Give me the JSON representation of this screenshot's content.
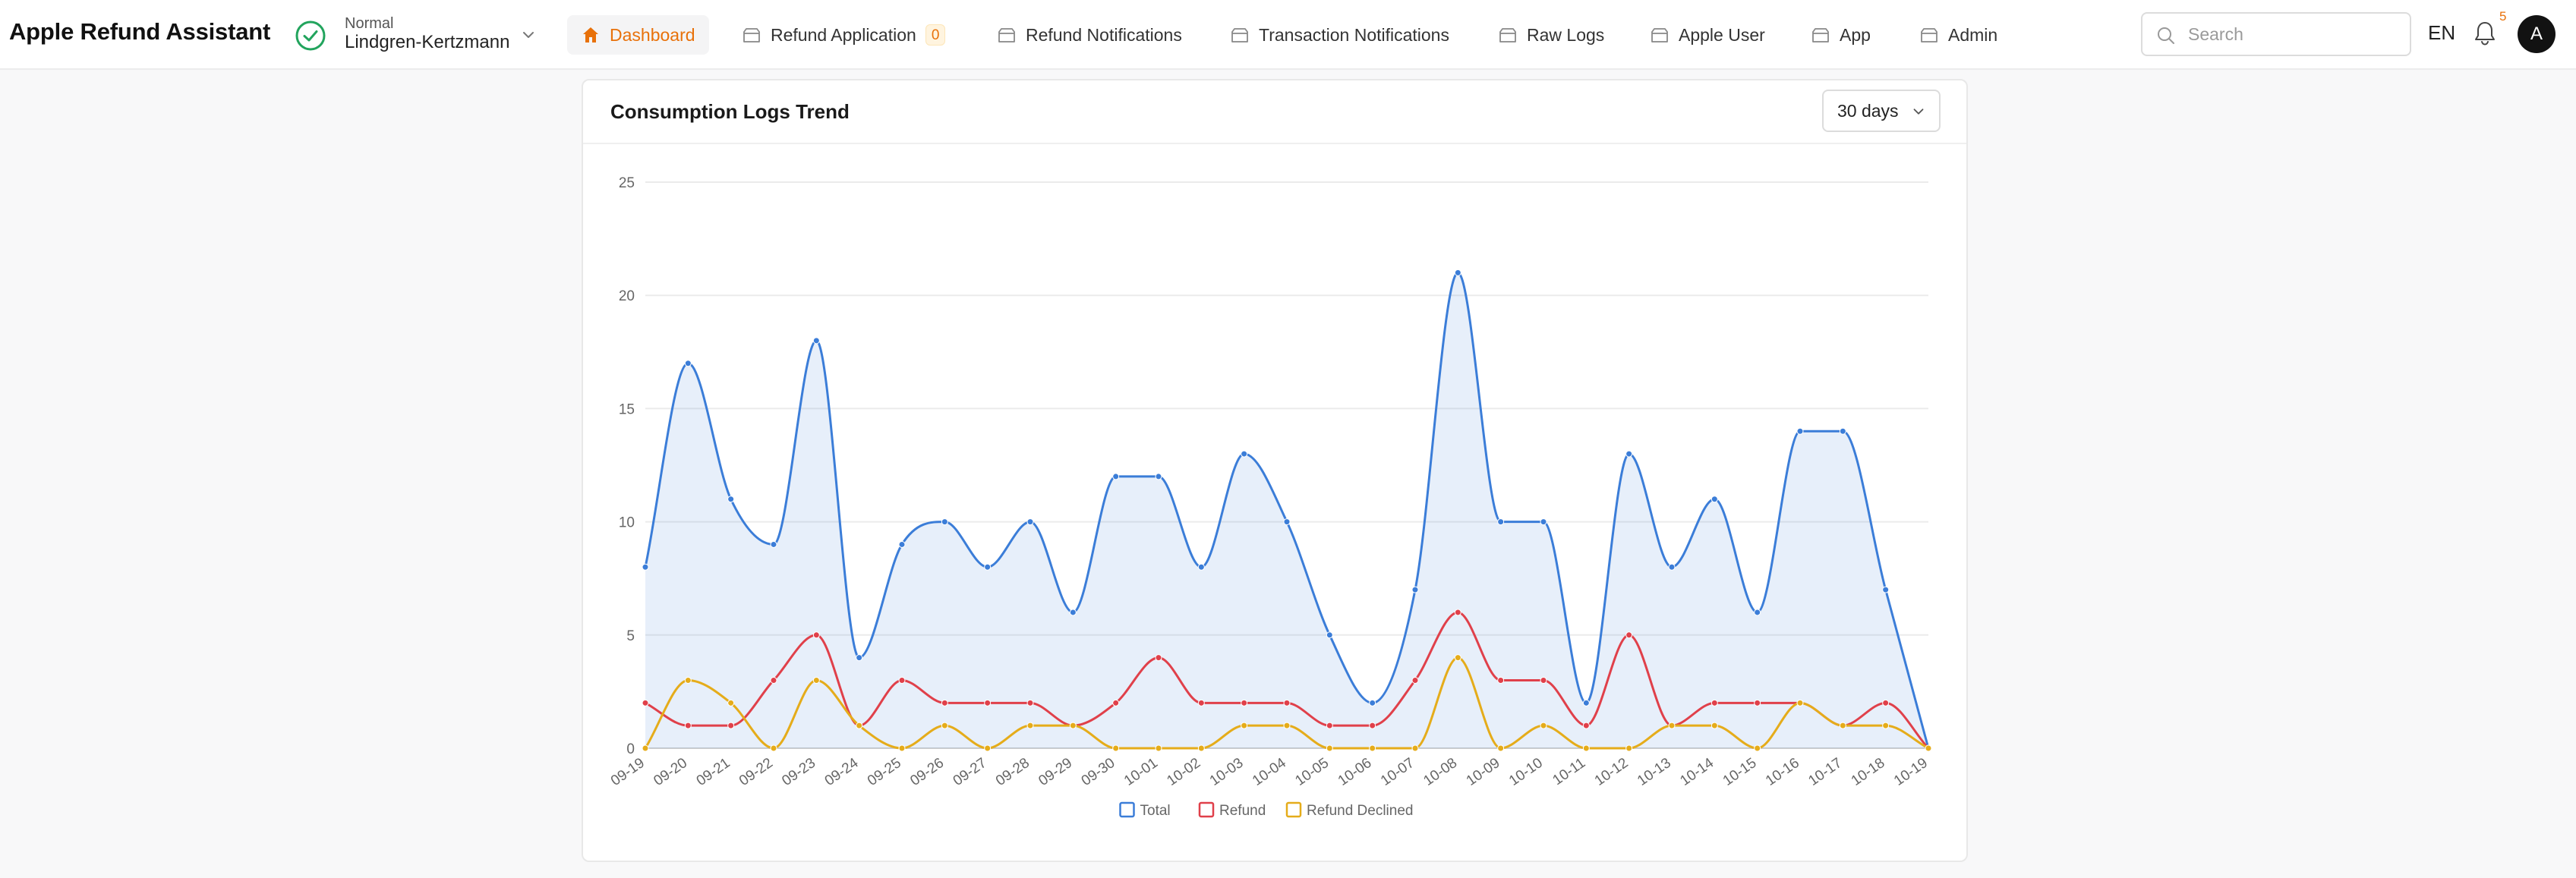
{
  "brand": "Apple Refund Assistant",
  "tenant": {
    "status": "Normal",
    "name": "Lindgren-Kertzmann"
  },
  "nav": [
    {
      "label": "Dashboard",
      "icon": "home-icon",
      "active": true
    },
    {
      "label": "Refund Application",
      "icon": "folder-icon",
      "badge": "0"
    },
    {
      "label": "Refund Notifications",
      "icon": "folder-icon"
    },
    {
      "label": "Transaction Notifications",
      "icon": "folder-icon"
    },
    {
      "label": "Raw Logs",
      "icon": "folder-icon"
    },
    {
      "label": "Apple User",
      "icon": "folder-icon"
    },
    {
      "label": "App",
      "icon": "folder-icon"
    },
    {
      "label": "Admin",
      "icon": "folder-icon"
    }
  ],
  "search": {
    "placeholder": "Search"
  },
  "language": "EN",
  "notifications": {
    "count": "5"
  },
  "user": {
    "initial": "A"
  },
  "card": {
    "title": "Consumption Logs Trend",
    "range": "30 days"
  },
  "colors": {
    "accent": "#e8710a",
    "total": "#3b7dd8",
    "refund": "#e0404a",
    "declined": "#e5ac1a"
  },
  "chart_data": {
    "type": "area",
    "x": [
      "09-19",
      "09-20",
      "09-21",
      "09-22",
      "09-23",
      "09-24",
      "09-25",
      "09-26",
      "09-27",
      "09-28",
      "09-29",
      "09-30",
      "10-01",
      "10-02",
      "10-03",
      "10-04",
      "10-05",
      "10-06",
      "10-07",
      "10-08",
      "10-09",
      "10-10",
      "10-11",
      "10-12",
      "10-13",
      "10-14",
      "10-15",
      "10-16",
      "10-17",
      "10-18",
      "10-19"
    ],
    "ylim": [
      0,
      25
    ],
    "yticks": [
      0,
      5,
      10,
      15,
      20,
      25
    ],
    "grid": true,
    "legend_position": "bottom",
    "series": [
      {
        "name": "Total",
        "color": "#3b7dd8",
        "fill": true,
        "values": [
          8,
          17,
          11,
          9,
          18,
          4,
          9,
          10,
          8,
          10,
          6,
          12,
          12,
          8,
          13,
          10,
          5,
          2,
          7,
          21,
          10,
          10,
          2,
          13,
          8,
          11,
          6,
          14,
          14,
          7,
          0
        ]
      },
      {
        "name": "Refund",
        "color": "#e0404a",
        "fill": false,
        "values": [
          2,
          1,
          1,
          3,
          5,
          1,
          3,
          2,
          2,
          2,
          1,
          2,
          4,
          2,
          2,
          2,
          1,
          1,
          3,
          6,
          3,
          3,
          1,
          5,
          1,
          2,
          2,
          2,
          1,
          2,
          0
        ]
      },
      {
        "name": "Refund Declined",
        "color": "#e5ac1a",
        "fill": false,
        "values": [
          0,
          3,
          2,
          0,
          3,
          1,
          0,
          1,
          0,
          1,
          1,
          0,
          0,
          0,
          1,
          1,
          0,
          0,
          0,
          4,
          0,
          1,
          0,
          0,
          1,
          1,
          0,
          2,
          1,
          1,
          0
        ]
      }
    ]
  }
}
